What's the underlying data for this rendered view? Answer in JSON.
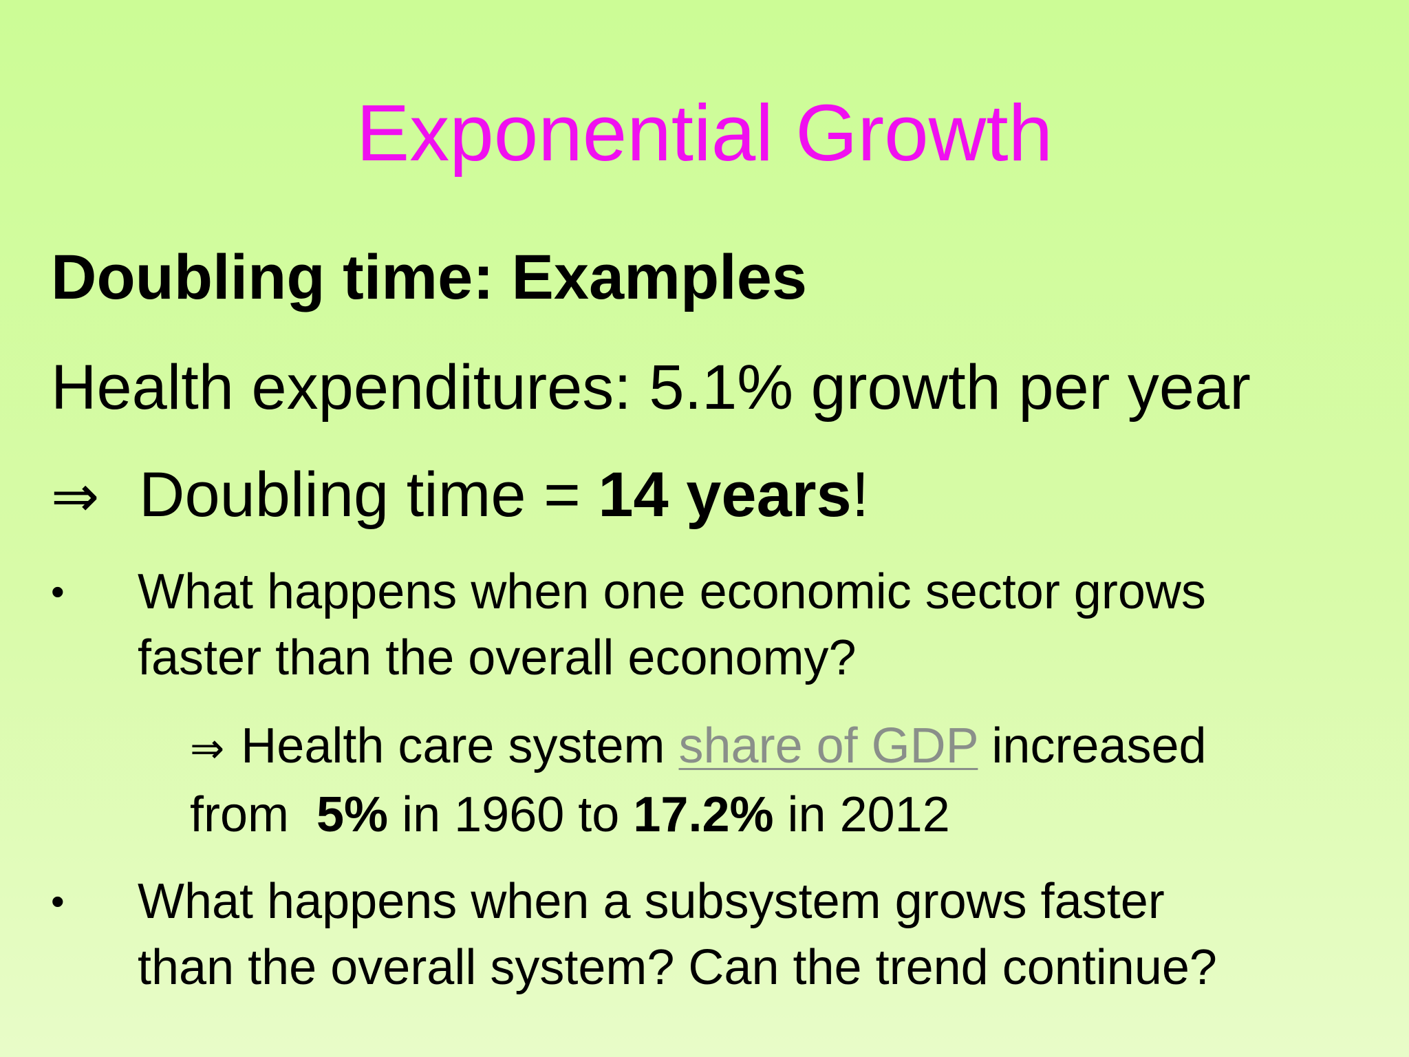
{
  "slide": {
    "title": "Exponential Growth",
    "heading": "Doubling time: Examples",
    "health_line": "Health expenditures: 5.1% growth per year",
    "doubling": {
      "arrow": "⇒",
      "prefix": "Doubling time = ",
      "value": "14 years",
      "suffix": "!"
    },
    "bullets": [
      {
        "dot": "•",
        "line1": "What happens when one economic sector grows",
        "line2": "faster than the overall economy?"
      },
      {
        "dot": "•",
        "line1": "What happens when a subsystem grows faster",
        "line2": "than the overall system? Can the trend continue?"
      }
    ],
    "sub": {
      "arrow": "⇒",
      "prefix": "Health care system ",
      "link": "share of GDP",
      "after_link": " increased",
      "from": "from  ",
      "start_value": "5%",
      "mid": " in 1960 to ",
      "end_value": "17.2%",
      "end": " in 2012"
    }
  },
  "colors": {
    "title": "#f00ff0",
    "background": "#d8fba8",
    "link": "#8a8f8a"
  }
}
